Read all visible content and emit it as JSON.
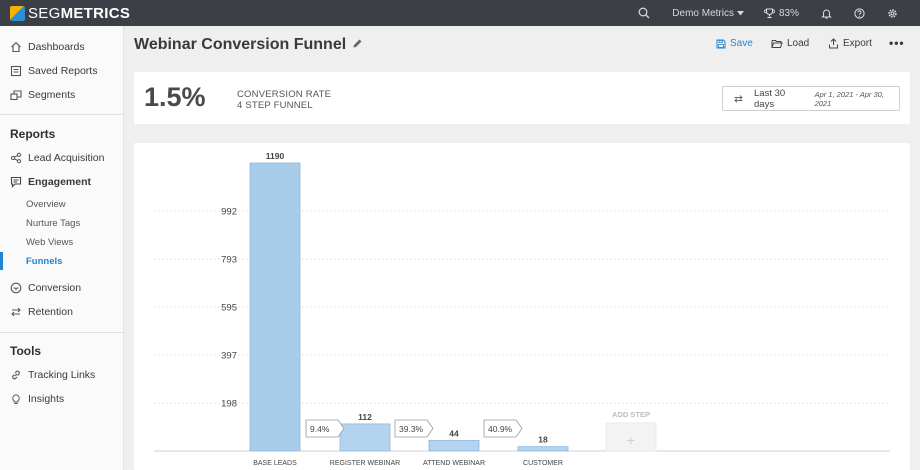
{
  "app": {
    "logo_light": "SEG",
    "logo_bold": "METRICS",
    "account": "Demo Metrics",
    "score": "83%"
  },
  "sidebar": {
    "top_items": [
      {
        "label": "Dashboards",
        "icon": "home-icon"
      },
      {
        "label": "Saved Reports",
        "icon": "saved-reports-icon"
      },
      {
        "label": "Segments",
        "icon": "segments-icon"
      }
    ],
    "reports_title": "Reports",
    "lead_acquisition": "Lead Acquisition",
    "engagement": "Engagement",
    "engagement_subs": [
      "Overview",
      "Nurture Tags",
      "Web Views",
      "Funnels"
    ],
    "conversion": "Conversion",
    "retention": "Retention",
    "tools_title": "Tools",
    "tracking_links": "Tracking Links",
    "insights": "Insights"
  },
  "header": {
    "title": "Webinar Conversion Funnel",
    "save": "Save",
    "load": "Load",
    "export": "Export",
    "more": "•••"
  },
  "kpi": {
    "value": "1.5%",
    "label1": "CONVERSION RATE",
    "label2": "4 STEP FUNNEL"
  },
  "date_filter": {
    "label": "Last 30 days",
    "range": "Apr 1, 2021 - Apr 30, 2021"
  },
  "chart_data": {
    "type": "bar",
    "categories": [
      "BASE LEADS",
      "REGISTER WEBINAR",
      "ATTEND WEBINAR",
      "CUSTOMER"
    ],
    "values": [
      1190,
      112,
      44,
      18
    ],
    "step_rates": [
      "9.4%",
      "39.3%",
      "40.9%"
    ],
    "y_ticks": [
      198,
      397,
      595,
      793,
      992
    ],
    "ylim": [
      0,
      1190
    ],
    "grid": true,
    "add_step_label": "ADD STEP",
    "add_step_symbol": "+"
  },
  "colors": {
    "accent": "#1f86d6",
    "bar": "#b3d3ee",
    "bar_first": "#a8cbea",
    "topbar": "#3c3f45"
  }
}
